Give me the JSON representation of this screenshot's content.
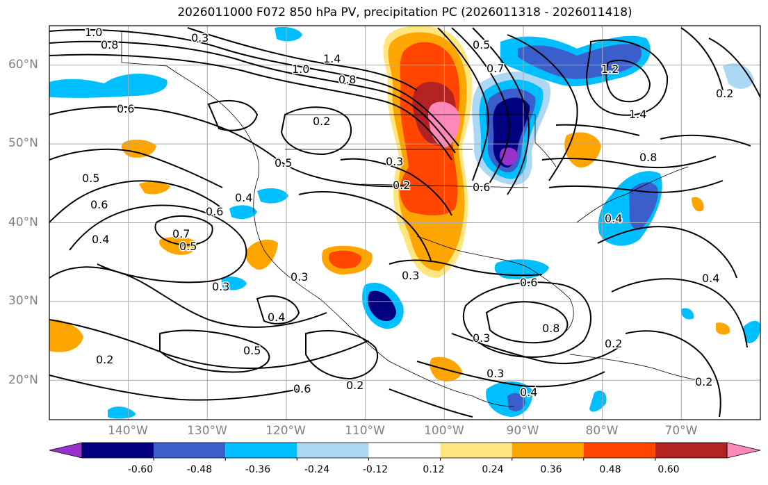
{
  "title": "2026011000 F072 850 hPa PV, precipitation PC (2026011318 - 2026011418)",
  "map": {
    "lat_labels": [
      "60°N",
      "50°N",
      "40°N",
      "30°N",
      "20°N"
    ],
    "lat_values": [
      60,
      50,
      40,
      30,
      20
    ],
    "lon_labels": [
      "140°W",
      "130°W",
      "120°W",
      "110°W",
      "100°W",
      "90°W",
      "80°W",
      "70°W"
    ],
    "lon_values": [
      -140,
      -130,
      -120,
      -110,
      -100,
      -90,
      -80,
      -70
    ],
    "extent": {
      "lon_min": -150,
      "lon_max": -60,
      "lat_min": 15,
      "lat_max": 65
    },
    "contour_labels": [
      "1.0",
      "0.8",
      "0.3",
      "1.0",
      "0.8",
      "1.4",
      "0.5",
      "0.7",
      "1.2",
      "1.4",
      "0.6",
      "0.2",
      "0.5",
      "0.3",
      "0.2",
      "0.6",
      "0.8",
      "0.5",
      "0.6",
      "0.4",
      "0.6",
      "0.7",
      "0.5",
      "0.4",
      "0.3",
      "0.3",
      "0.4",
      "0.3",
      "0.6",
      "0.8",
      "0.3",
      "0.5",
      "0.6",
      "0.2",
      "0.2",
      "0.3",
      "0.4",
      "0.2",
      "0.2",
      "0.4",
      "0.4",
      "0.2"
    ]
  },
  "colorbar": {
    "ticks": [
      "-0.60",
      "-0.48",
      "-0.36",
      "-0.24",
      "-0.12",
      "0.12",
      "0.24",
      "0.36",
      "0.48",
      "0.60"
    ],
    "tick_values": [
      -0.6,
      -0.48,
      -0.36,
      -0.24,
      -0.12,
      0.12,
      0.24,
      0.36,
      0.48,
      0.6
    ],
    "colors": [
      "#9932cc",
      "#000080",
      "#3a5fcd",
      "#00bfff",
      "#add8f5",
      "#ffffff",
      "#ffe680",
      "#ffa500",
      "#ff4500",
      "#b22222",
      "#ff88bb"
    ]
  }
}
